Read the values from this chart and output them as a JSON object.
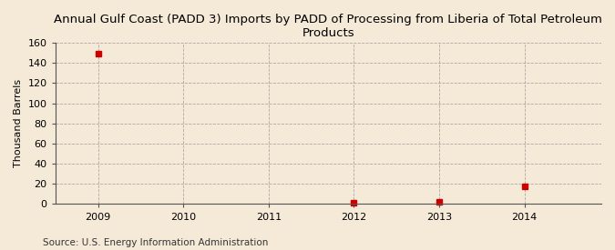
{
  "title": "Annual Gulf Coast (PADD 3) Imports by PADD of Processing from Liberia of Total Petroleum\nProducts",
  "ylabel": "Thousand Barrels",
  "source": "Source: U.S. Energy Information Administration",
  "x": [
    2009,
    2010,
    2011,
    2012,
    2013,
    2014
  ],
  "y": [
    149,
    null,
    null,
    1,
    2,
    18
  ],
  "xlim": [
    2008.5,
    2014.9
  ],
  "ylim": [
    0,
    160
  ],
  "yticks": [
    0,
    20,
    40,
    60,
    80,
    100,
    120,
    140,
    160
  ],
  "xticks": [
    2009,
    2010,
    2011,
    2012,
    2013,
    2014
  ],
  "marker_color": "#cc0000",
  "marker": "s",
  "marker_size": 4,
  "background_color": "#f5ead8",
  "plot_bg_color": "#f5ead8",
  "grid_color": "#999999",
  "title_fontsize": 9.5,
  "label_fontsize": 8,
  "tick_fontsize": 8,
  "source_fontsize": 7.5
}
